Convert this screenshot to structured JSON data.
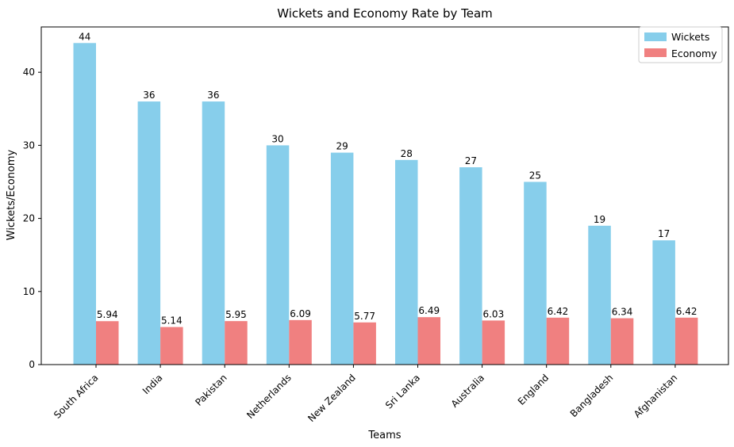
{
  "chart_data": {
    "type": "bar",
    "title": "Wickets and Economy Rate by Team",
    "xlabel": "Teams",
    "ylabel": "Wickets/Economy",
    "categories": [
      "South Africa",
      "India",
      "Pakistan",
      "Netherlands",
      "New Zealand",
      "Sri Lanka",
      "Australia",
      "England",
      "Bangladesh",
      "Afghanistan"
    ],
    "series": [
      {
        "name": "Wickets",
        "color": "#87CEEB",
        "values": [
          44,
          36,
          36,
          30,
          29,
          28,
          27,
          25,
          19,
          17
        ],
        "labels": [
          "44",
          "36",
          "36",
          "30",
          "29",
          "28",
          "27",
          "25",
          "19",
          "17"
        ]
      },
      {
        "name": "Economy",
        "color": "#F08080",
        "values": [
          5.94,
          5.14,
          5.95,
          6.09,
          5.77,
          6.49,
          6.03,
          6.42,
          6.34,
          6.42
        ],
        "labels": [
          "5.94",
          "5.14",
          "5.95",
          "6.09",
          "5.77",
          "6.49",
          "6.03",
          "6.42",
          "6.34",
          "6.42"
        ]
      }
    ],
    "yticks": [
      0,
      10,
      20,
      30,
      40
    ],
    "ylim": [
      0,
      46.2
    ],
    "grid": false,
    "legend_position": "top-right"
  }
}
